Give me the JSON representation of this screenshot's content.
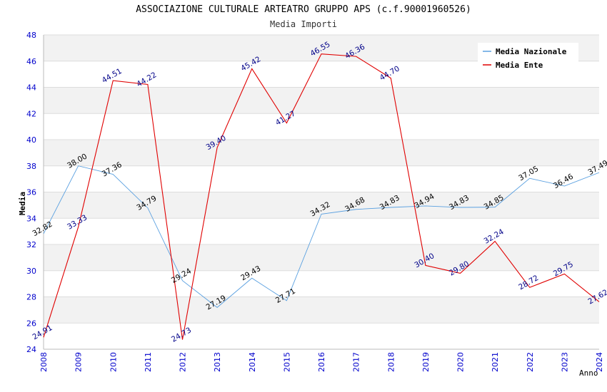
{
  "chart_data": {
    "type": "line",
    "title": "ASSOCIAZIONE CULTURALE ARTEATRO GRUPPO APS (c.f.90001960526)",
    "subtitle": "Media Importi",
    "xlabel": "Anno",
    "ylabel": "Media",
    "ylim": [
      24,
      48
    ],
    "yticks": [
      24,
      26,
      28,
      30,
      32,
      34,
      36,
      38,
      40,
      42,
      44,
      46,
      48
    ],
    "categories": [
      "2008",
      "2009",
      "2010",
      "2011",
      "2012",
      "2013",
      "2014",
      "2015",
      "2016",
      "2017",
      "2018",
      "2019",
      "2020",
      "2021",
      "2022",
      "2023",
      "2024"
    ],
    "grid": true,
    "legend_position": "top-right",
    "series": [
      {
        "name": "Media Nazionale",
        "color": "#5aa0e0",
        "values": [
          32.82,
          38.0,
          37.36,
          34.79,
          29.24,
          27.19,
          29.43,
          27.71,
          34.32,
          34.68,
          34.83,
          34.94,
          34.83,
          34.85,
          37.05,
          36.46,
          37.49
        ],
        "labels": [
          "32.82",
          "38.00",
          "37.36",
          "34.79",
          "29.24",
          "27.19",
          "29.43",
          "27.71",
          "34.32",
          "34.68",
          "34.83",
          "34.94",
          "34.83",
          "34.85",
          "37.05",
          "36.46",
          "37.49"
        ]
      },
      {
        "name": "Media Ente",
        "color": "#e00000",
        "values": [
          24.91,
          33.33,
          44.51,
          44.22,
          24.73,
          39.4,
          45.42,
          41.27,
          46.55,
          46.36,
          44.7,
          30.4,
          29.8,
          32.24,
          28.72,
          29.75,
          27.62
        ],
        "labels": [
          "24.91",
          "33.33",
          "44.51",
          "44.22",
          "24.73",
          "39.40",
          "45.42",
          "41.27",
          "46.55",
          "46.36",
          "44.70",
          "30.40",
          "29.80",
          "32.24",
          "28.72",
          "29.75",
          "27.62"
        ]
      }
    ]
  }
}
